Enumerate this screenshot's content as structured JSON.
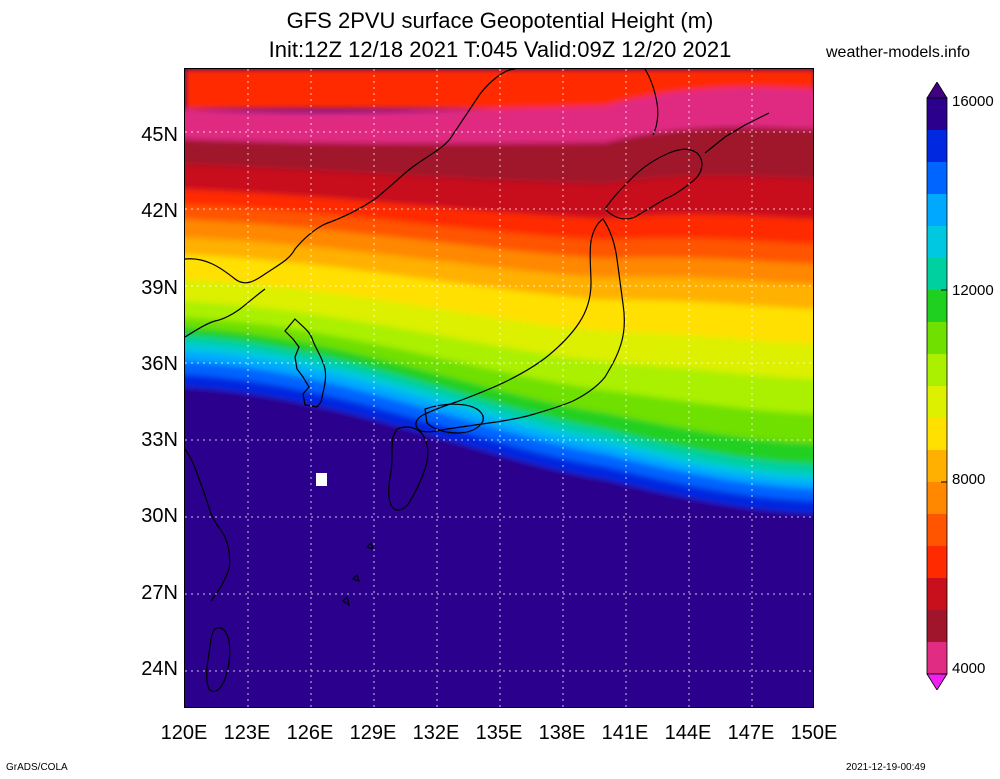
{
  "header": {
    "title_line1": "GFS 2PVU surface Geopotential Height (m)",
    "title_line2": "Init:12Z 12/18 2021 T:045 Valid:09Z 12/20 2021",
    "site": "weather-models.info"
  },
  "footer": {
    "left": "GrADS/COLA",
    "right": "2021-12-19-00:49"
  },
  "map": {
    "lat_labels": [
      "45N",
      "42N",
      "39N",
      "36N",
      "33N",
      "30N",
      "27N",
      "24N"
    ],
    "lon_labels": [
      "120E",
      "123E",
      "126E",
      "129E",
      "132E",
      "135E",
      "138E",
      "141E",
      "144E",
      "147E",
      "150E"
    ],
    "lat_range": [
      22.5,
      47.5
    ],
    "lon_range": [
      120,
      150
    ],
    "field_band_colors": [
      "#e02c82",
      "#a0142c",
      "#c8101c",
      "#ff2a00",
      "#ff5500",
      "#ff8800",
      "#ffb000",
      "#ffe000",
      "#dcf000",
      "#aaf000",
      "#70e000",
      "#20d020",
      "#00d0a0",
      "#00c8e0",
      "#00a8ff",
      "#0064ff",
      "#0028e0",
      "#2a008c"
    ]
  },
  "colorbar": {
    "labels": [
      "16000",
      "12000",
      "8000",
      "4000"
    ],
    "min": 4000,
    "max": 16000,
    "colors": [
      "#f020f0",
      "#e02c82",
      "#a0142c",
      "#c8101c",
      "#ff2a00",
      "#ff5500",
      "#ff8800",
      "#ffb000",
      "#ffe000",
      "#dcf000",
      "#aaf000",
      "#70e000",
      "#20d020",
      "#00d0a0",
      "#00c8e0",
      "#00a8ff",
      "#0064ff",
      "#0028e0",
      "#2a008c",
      "#400080"
    ]
  }
}
